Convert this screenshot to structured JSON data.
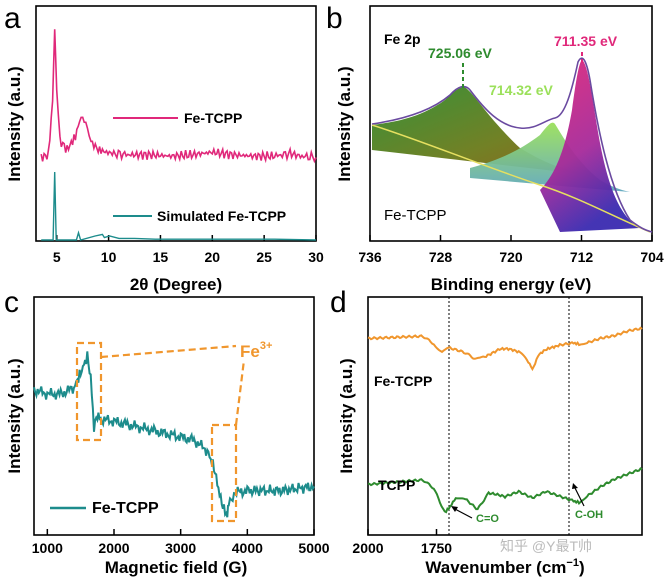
{
  "chart_data": [
    {
      "panel": "a",
      "type": "line",
      "xlabel": "2θ (Degree)",
      "ylabel": "Intensity (a.u.)",
      "xlim": [
        3,
        30
      ],
      "xticks": [
        5,
        10,
        15,
        20,
        25,
        30
      ],
      "series": [
        {
          "name": "Fe-TCPP",
          "color": "#e0287a",
          "x": [
            3.5,
            4.2,
            4.6,
            4.8,
            5.0,
            5.3,
            6.0,
            6.8,
            7.2,
            7.5,
            7.8,
            8.3,
            9.0,
            9.8,
            10.5,
            12,
            14,
            16,
            18,
            20,
            21,
            22,
            24,
            26,
            27.5,
            28.5,
            30
          ],
          "y": [
            0.02,
            0.04,
            0.45,
            1.0,
            0.55,
            0.15,
            0.08,
            0.18,
            0.3,
            0.33,
            0.28,
            0.14,
            0.08,
            0.06,
            0.05,
            0.04,
            0.04,
            0.03,
            0.04,
            0.06,
            0.05,
            0.04,
            0.03,
            0.03,
            0.05,
            0.03,
            0.02
          ]
        },
        {
          "name": "Simulated Fe-TCPP",
          "color": "#1d8c8c",
          "x": [
            3.5,
            4.65,
            4.8,
            4.95,
            6.9,
            7.1,
            7.3,
            8.7,
            9.4,
            9.6,
            10.1,
            11.0,
            12.5,
            14.5,
            17,
            20,
            23,
            26,
            30
          ],
          "y": [
            0.0,
            0.0,
            0.85,
            0.0,
            0.0,
            0.09,
            0.0,
            0.05,
            0.07,
            0.03,
            0.05,
            0.02,
            0.02,
            0.01,
            0.01,
            0.01,
            0.01,
            0.01,
            0.0
          ]
        }
      ]
    },
    {
      "panel": "b",
      "type": "area",
      "xlabel": "Binding energy (eV)",
      "ylabel": "Intensity (a.u.)",
      "xlim": [
        736,
        704
      ],
      "xticks": [
        736,
        728,
        720,
        712,
        704
      ],
      "peaks": [
        {
          "label": "725.06 eV",
          "center": 725.06,
          "color": "#2e8b2e"
        },
        {
          "label": "714.32 eV",
          "center": 714.32,
          "color": "#9be05a"
        },
        {
          "label": "711.35 eV",
          "center": 711.35,
          "color": "#e0287a"
        }
      ],
      "title": "Fe 2p",
      "sample": "Fe-TCPP"
    },
    {
      "panel": "c",
      "type": "line",
      "xlabel": "Magnetic field (G)",
      "ylabel": "Intensity (a.u.)",
      "xlim": [
        800,
        5000
      ],
      "xticks": [
        1000,
        2000,
        3000,
        4000,
        5000
      ],
      "series": [
        {
          "name": "Fe-TCPP",
          "color": "#1d8c8c",
          "x": [
            800,
            1000,
            1200,
            1400,
            1500,
            1600,
            1650,
            1700,
            1750,
            1800,
            2000,
            2400,
            2800,
            3200,
            3400,
            3500,
            3600,
            3650,
            3700,
            3720,
            3800,
            4000,
            4500,
            5000
          ],
          "y": [
            0.62,
            0.6,
            0.6,
            0.63,
            0.7,
            0.78,
            0.68,
            0.44,
            0.5,
            0.48,
            0.47,
            0.44,
            0.41,
            0.38,
            0.33,
            0.25,
            0.1,
            0.05,
            0.02,
            0.08,
            0.13,
            0.14,
            0.14,
            0.16
          ]
        }
      ],
      "annotation": "Fe3+",
      "annotation_base": "Fe",
      "annotation_sup": "3+"
    },
    {
      "panel": "d",
      "type": "line",
      "xlabel": "Wavenumber (cm⁻¹)",
      "xlabel_base": "Wavenumber (cm",
      "xlabel_sup": "−1",
      "xlabel_end": ")",
      "ylabel": "Intensity (a.u.)",
      "xlim": [
        2000,
        1000
      ],
      "xticks": [
        2000,
        1750
      ],
      "series": [
        {
          "name": "Fe-TCPP",
          "color": "#f0962d",
          "x": [
            2000,
            1900,
            1800,
            1760,
            1730,
            1700,
            1650,
            1610,
            1580,
            1520,
            1450,
            1420,
            1400,
            1380,
            1300,
            1250,
            1230,
            1200,
            1150,
            1100,
            1050,
            1000
          ],
          "y": [
            0.8,
            0.8,
            0.8,
            0.74,
            0.66,
            0.68,
            0.64,
            0.58,
            0.62,
            0.68,
            0.66,
            0.56,
            0.5,
            0.62,
            0.74,
            0.76,
            0.72,
            0.76,
            0.8,
            0.82,
            0.86,
            0.88
          ]
        },
        {
          "name": "TCPP",
          "color": "#2e8b2e",
          "x": [
            2000,
            1900,
            1800,
            1760,
            1720,
            1700,
            1680,
            1650,
            1600,
            1560,
            1500,
            1450,
            1400,
            1350,
            1300,
            1250,
            1230,
            1200,
            1150,
            1100,
            1050,
            1000
          ],
          "y": [
            0.32,
            0.33,
            0.34,
            0.28,
            0.08,
            0.1,
            0.2,
            0.18,
            0.08,
            0.22,
            0.2,
            0.25,
            0.2,
            0.26,
            0.22,
            0.18,
            0.14,
            0.22,
            0.3,
            0.36,
            0.4,
            0.44
          ]
        }
      ],
      "markers": [
        {
          "label": "C=O",
          "x": 1720
        },
        {
          "label": "C-OH",
          "x": 1230
        }
      ]
    }
  ],
  "labels": {
    "panel_a": "a",
    "panel_b": "b",
    "panel_c": "c",
    "panel_d": "d",
    "a_legend_1": "Fe-TCPP",
    "a_legend_2": "Simulated Fe-TCPP",
    "b_title": "Fe 2p",
    "b_peak_1": "725.06 eV",
    "b_peak_2": "714.32 eV",
    "b_peak_3": "711.35 eV",
    "b_sample": "Fe-TCPP",
    "c_legend": "Fe-TCPP",
    "c_fe": "Fe",
    "c_sup": "3+",
    "d_label_fe": "Fe-TCPP",
    "d_label_tcpp": "TCPP",
    "d_marker_co": "C=O",
    "d_marker_coh": "C-OH",
    "watermark": "知乎 @Y最T帅"
  },
  "colors": {
    "fe_tcpp_pink": "#e0287a",
    "simulated_teal": "#1d8c8c",
    "orange": "#f0962d",
    "green": "#2e8b2e",
    "light_green": "#9be05a"
  }
}
